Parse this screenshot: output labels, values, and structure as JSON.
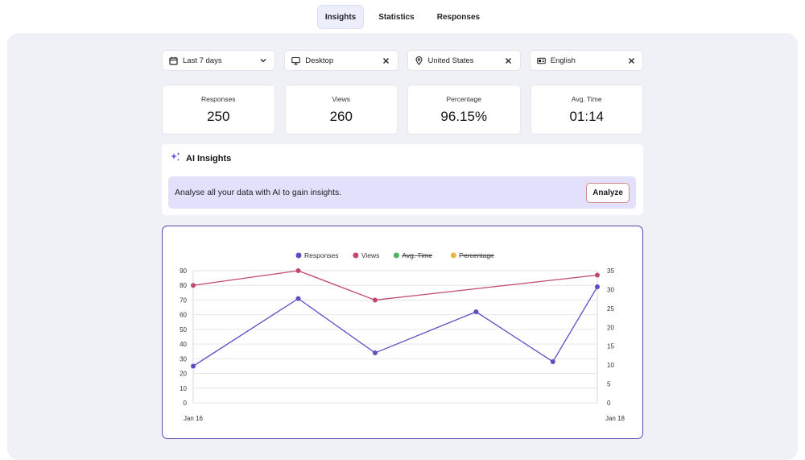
{
  "tabs": [
    {
      "label": "Insights",
      "active": true
    },
    {
      "label": "Statistics",
      "active": false
    },
    {
      "label": "Responses",
      "active": false
    }
  ],
  "filters": {
    "date": "Last 7 days",
    "device": "Desktop",
    "country": "United States",
    "language": "English"
  },
  "stats": [
    {
      "title": "Responses",
      "value": "250"
    },
    {
      "title": "Views",
      "value": "260"
    },
    {
      "title": "Percentage",
      "value": "96.15%"
    },
    {
      "title": "Avg. Time",
      "value": "01:14"
    }
  ],
  "ai": {
    "title": "AI Insights",
    "message": "Analyse all your data with AI to gain insights.",
    "button": "Analyze"
  },
  "colors": {
    "responses": "#5b4fc2",
    "views": "#c0476d",
    "avg_time": "#4db36a",
    "percentage": "#e6b93a",
    "accent": "#5648a8"
  },
  "chart_data": {
    "type": "line",
    "x_labels": [
      "Jan 16",
      "Jan 18"
    ],
    "ylim_left": [
      0,
      90
    ],
    "yticks_left": [
      0,
      10,
      20,
      30,
      40,
      50,
      60,
      70,
      80,
      90
    ],
    "ylim_right": [
      0,
      35
    ],
    "yticks_right": [
      0,
      5,
      10,
      15,
      20,
      25,
      30,
      35
    ],
    "legend_position": "top-center",
    "legend": [
      {
        "name": "Responses",
        "color": "#5b4fc2",
        "hidden": false
      },
      {
        "name": "Views",
        "color": "#c0476d",
        "hidden": false
      },
      {
        "name": "Avg. Time",
        "color": "#4db36a",
        "hidden": true
      },
      {
        "name": "Percentage",
        "color": "#e6b93a",
        "hidden": true
      }
    ],
    "series": [
      {
        "name": "Responses",
        "axis": "left",
        "values": [
          25,
          71,
          34,
          62,
          28,
          79
        ]
      },
      {
        "name": "Views",
        "axis": "left",
        "values": [
          80,
          90,
          70,
          null,
          null,
          87
        ]
      }
    ],
    "x_points": [
      0,
      0.26,
      0.45,
      0.7,
      0.89,
      1.0
    ]
  }
}
